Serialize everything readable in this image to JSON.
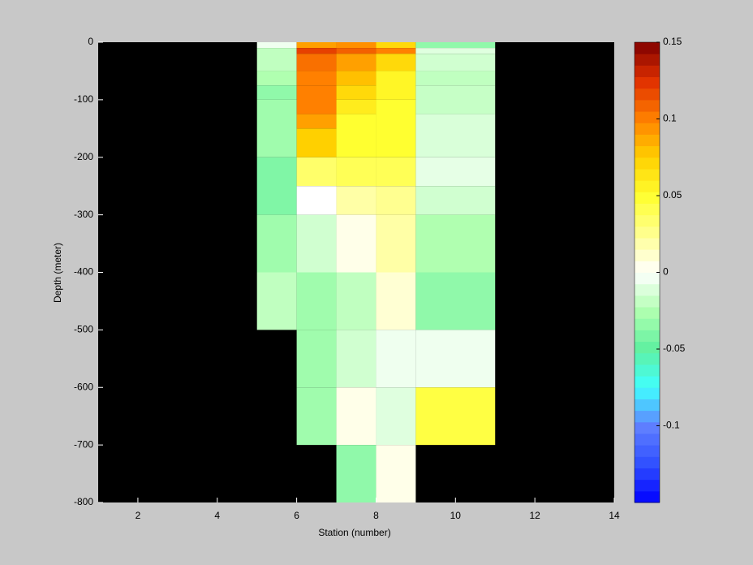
{
  "chart_data": {
    "type": "heatmap",
    "xlabel": "Station (number)",
    "ylabel": "Depth (meter)",
    "xlim": [
      1,
      14
    ],
    "xticks": [
      2,
      4,
      6,
      8,
      10,
      12,
      14
    ],
    "ylim": [
      -800,
      0
    ],
    "yticks": [
      0,
      -100,
      -200,
      -300,
      -400,
      -500,
      -600,
      -700,
      -800
    ],
    "background": "#000000",
    "clim": [
      -0.15,
      0.15
    ],
    "cticks": [
      -0.1,
      -0.05,
      0,
      0.05,
      0.1,
      0.15
    ],
    "colormap": [
      "#0000ff",
      "#3050ff",
      "#6080ff",
      "#40ffff",
      "#60f0a0",
      "#b0ffb0",
      "#ffffff",
      "#ffff90",
      "#ffff30",
      "#ffd000",
      "#ff8000",
      "#e03000",
      "#800000"
    ],
    "columns": [
      {
        "x": [
          5,
          6
        ],
        "cells": [
          {
            "depth": [
              0,
              -10
            ],
            "value": -0.005
          },
          {
            "depth": [
              -10,
              -50
            ],
            "value": -0.02
          },
          {
            "depth": [
              -50,
              -75
            ],
            "value": -0.025
          },
          {
            "depth": [
              -75,
              -100
            ],
            "value": -0.035
          },
          {
            "depth": [
              -100,
              -200
            ],
            "value": -0.03
          },
          {
            "depth": [
              -200,
              -300
            ],
            "value": -0.04
          },
          {
            "depth": [
              -300,
              -400
            ],
            "value": -0.03
          },
          {
            "depth": [
              -400,
              -500
            ],
            "value": -0.02
          }
        ]
      },
      {
        "x": [
          6,
          7
        ],
        "cells": [
          {
            "depth": [
              0,
              -10
            ],
            "value": 0.09
          },
          {
            "depth": [
              -10,
              -20
            ],
            "value": 0.12
          },
          {
            "depth": [
              -20,
              -50
            ],
            "value": 0.105
          },
          {
            "depth": [
              -50,
              -75
            ],
            "value": 0.1
          },
          {
            "depth": [
              -75,
              -125
            ],
            "value": 0.1
          },
          {
            "depth": [
              -125,
              -150
            ],
            "value": 0.09
          },
          {
            "depth": [
              -150,
              -200
            ],
            "value": 0.075
          },
          {
            "depth": [
              -200,
              -250
            ],
            "value": 0.035
          },
          {
            "depth": [
              -250,
              -300
            ],
            "value": 0
          },
          {
            "depth": [
              -300,
              -400
            ],
            "value": -0.015
          },
          {
            "depth": [
              -400,
              -500
            ],
            "value": -0.03
          },
          {
            "depth": [
              -500,
              -600
            ],
            "value": -0.03
          },
          {
            "depth": [
              -600,
              -700
            ],
            "value": -0.03
          }
        ]
      },
      {
        "x": [
          7,
          8
        ],
        "cells": [
          {
            "depth": [
              0,
              -10
            ],
            "value": 0.095
          },
          {
            "depth": [
              -10,
              -20
            ],
            "value": 0.11
          },
          {
            "depth": [
              -20,
              -50
            ],
            "value": 0.09
          },
          {
            "depth": [
              -50,
              -75
            ],
            "value": 0.08
          },
          {
            "depth": [
              -75,
              -100
            ],
            "value": 0.07
          },
          {
            "depth": [
              -100,
              -125
            ],
            "value": 0.06
          },
          {
            "depth": [
              -125,
              -200
            ],
            "value": 0.05
          },
          {
            "depth": [
              -200,
              -250
            ],
            "value": 0.04
          },
          {
            "depth": [
              -250,
              -300
            ],
            "value": 0.02
          },
          {
            "depth": [
              -300,
              -400
            ],
            "value": 0.005
          },
          {
            "depth": [
              -400,
              -500
            ],
            "value": -0.02
          },
          {
            "depth": [
              -500,
              -600
            ],
            "value": -0.015
          },
          {
            "depth": [
              -600,
              -700
            ],
            "value": 0.005
          },
          {
            "depth": [
              -700,
              -800
            ],
            "value": -0.035
          }
        ]
      },
      {
        "x": [
          8,
          9
        ],
        "cells": [
          {
            "depth": [
              0,
              -10
            ],
            "value": 0.07
          },
          {
            "depth": [
              -10,
              -20
            ],
            "value": 0.1
          },
          {
            "depth": [
              -20,
              -50
            ],
            "value": 0.07
          },
          {
            "depth": [
              -50,
              -100
            ],
            "value": 0.055
          },
          {
            "depth": [
              -100,
              -200
            ],
            "value": 0.05
          },
          {
            "depth": [
              -200,
              -250
            ],
            "value": 0.04
          },
          {
            "depth": [
              -250,
              -300
            ],
            "value": 0.025
          },
          {
            "depth": [
              -300,
              -400
            ],
            "value": 0.02
          },
          {
            "depth": [
              -400,
              -500
            ],
            "value": 0.01
          },
          {
            "depth": [
              -500,
              -600
            ],
            "value": -0.005
          },
          {
            "depth": [
              -600,
              -700
            ],
            "value": -0.01
          },
          {
            "depth": [
              -700,
              -800
            ],
            "value": 0.005
          }
        ]
      },
      {
        "x": [
          9,
          11
        ],
        "cells": [
          {
            "depth": [
              0,
              -10
            ],
            "value": -0.035
          },
          {
            "depth": [
              -10,
              -20
            ],
            "value": -0.01
          },
          {
            "depth": [
              -20,
              -50
            ],
            "value": -0.015
          },
          {
            "depth": [
              -50,
              -75
            ],
            "value": -0.02
          },
          {
            "depth": [
              -75,
              -125
            ],
            "value": -0.018
          },
          {
            "depth": [
              -125,
              -200
            ],
            "value": -0.012
          },
          {
            "depth": [
              -200,
              -250
            ],
            "value": -0.008
          },
          {
            "depth": [
              -250,
              -300
            ],
            "value": -0.015
          },
          {
            "depth": [
              -300,
              -400
            ],
            "value": -0.025
          },
          {
            "depth": [
              -400,
              -500
            ],
            "value": -0.035
          },
          {
            "depth": [
              -500,
              -600
            ],
            "value": -0.005
          },
          {
            "depth": [
              -600,
              -700
            ],
            "value": 0.045
          }
        ]
      }
    ]
  }
}
